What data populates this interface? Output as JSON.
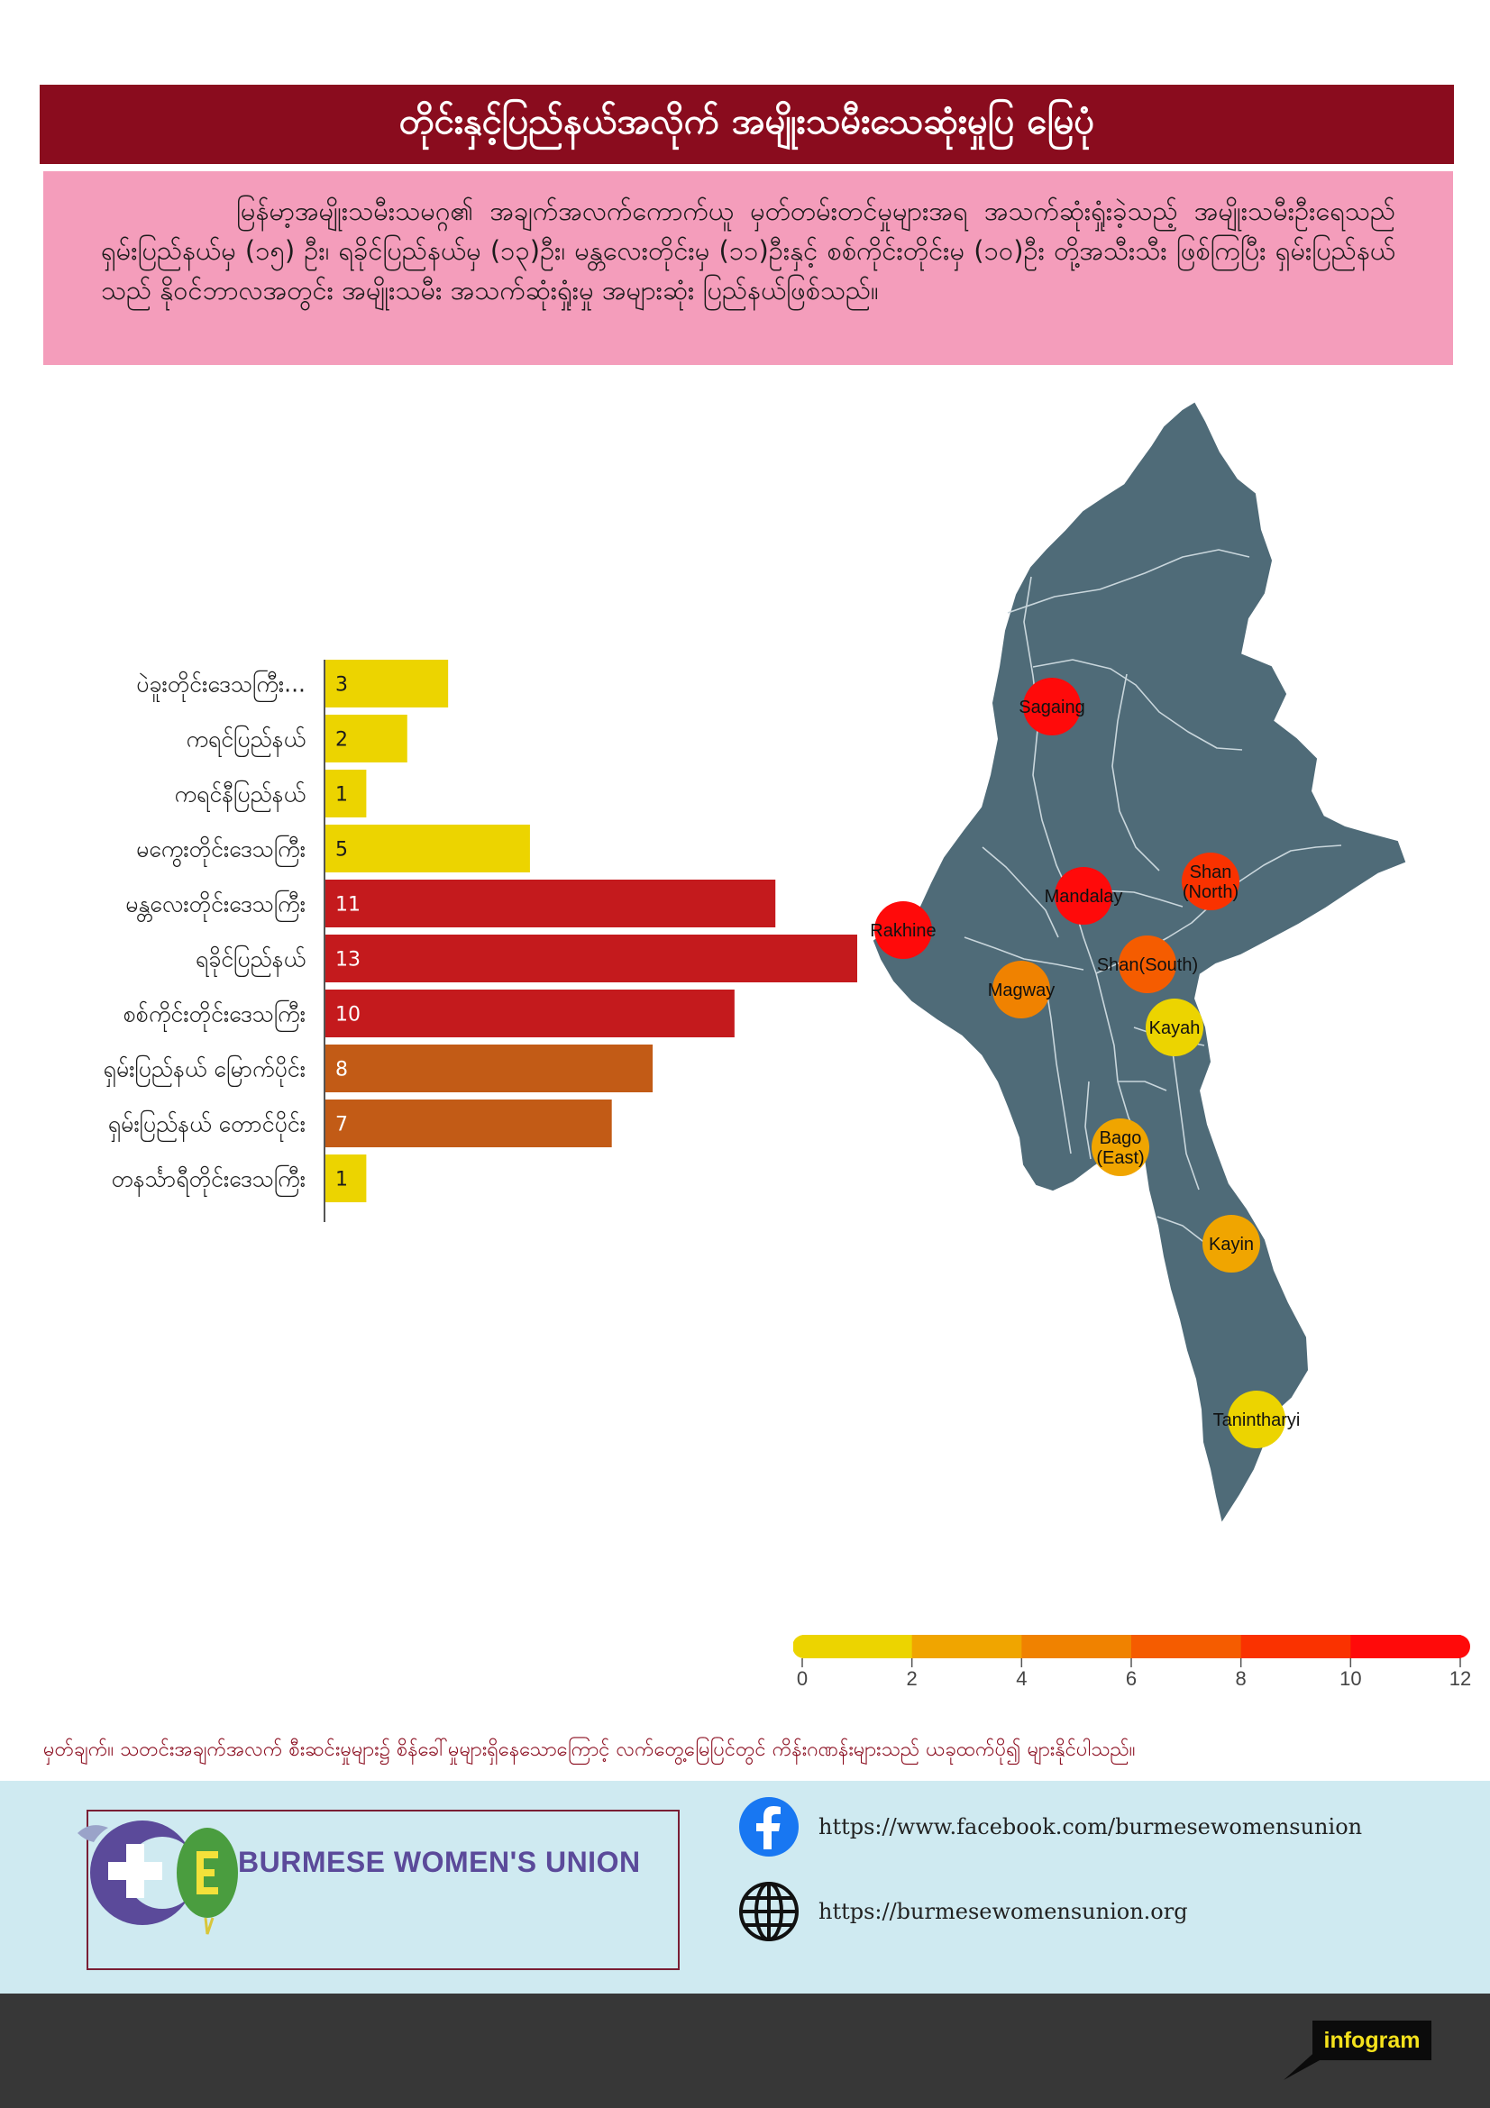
{
  "title": "တိုင်းနှင့်ပြည်နယ်အလိုက် အမျိုးသမီးသေဆုံးမှုပြ မြေပုံ",
  "summary": "မြန်မာ့အမျိုးသမီးသမဂ္ဂ၏ အချက်အလက်ကောက်ယူ မှတ်တမ်းတင်မှုများအရ အသက်ဆုံးရှုံးခဲ့သည့် အမျိုးသမီးဦးရေသည် ရှမ်းပြည်နယ်မှ (၁၅) ဦး၊ ရခိုင်ပြည်နယ်မှ (၁၃)ဦး၊ မန္တလေးတိုင်းမှ (၁၁)ဦးနှင့် စစ်ကိုင်းတိုင်းမှ (၁၀)ဦး တို့အသီးသီး ဖြစ်ကြပြီး ရှမ်းပြည်နယ်သည် နိုဝင်ဘာလအတွင်း အမျိုးသမီး အသက်ဆုံးရှုံးမှု အများဆုံး ပြည်နယ်ဖြစ်သည်။",
  "chart_data": {
    "type": "bar",
    "orientation": "horizontal",
    "categories": [
      "ပဲခူးတိုင်းဒေသကြီး...",
      "ကရင်ပြည်နယ်",
      "ကရင်နီပြည်နယ်",
      "မကွေးတိုင်းဒေသကြီး",
      "မန္တလေးတိုင်းဒေသကြီး",
      "ရခိုင်ပြည်နယ်",
      "စစ်ကိုင်းတိုင်းဒေသကြီး",
      "ရှမ်းပြည်နယ် မြောက်ပိုင်း",
      "ရှမ်းပြည်နယ် တောင်ပိုင်း",
      "တနင်္သာရီတိုင်းဒေသကြီး"
    ],
    "values": [
      3,
      2,
      1,
      5,
      11,
      13,
      10,
      8,
      7,
      1
    ],
    "xlim": [
      0,
      13
    ],
    "color_rule": {
      "low": "#ecd400",
      "mid": "#c25b16",
      "high": "#c41a1d"
    }
  },
  "map": {
    "land_color": "#4f6b78",
    "border_color": "#c9d6dc",
    "markers": [
      {
        "label": "Sagaing",
        "value": 10
      },
      {
        "label": "Rakhine",
        "value": 13
      },
      {
        "label": "Mandalay",
        "value": 11
      },
      {
        "label": "Shan (North)",
        "value": 8
      },
      {
        "label": "Shan(South)",
        "value": 7
      },
      {
        "label": "Magway",
        "value": 5
      },
      {
        "label": "Kayah",
        "value": 1
      },
      {
        "label": "Bago (East)",
        "value": 3
      },
      {
        "label": "Kayin",
        "value": 2
      },
      {
        "label": "Tanintharyi",
        "value": 1
      }
    ]
  },
  "legend": {
    "ticks": [
      "0",
      "2",
      "4",
      "6",
      "8",
      "10",
      "12"
    ],
    "colors": [
      "#ecd400",
      "#f0a500",
      "#f08200",
      "#f55c00",
      "#fa3200",
      "#ff0a0a"
    ]
  },
  "note": "မှတ်ချက်။ သတင်းအချက်အလက် စီးဆင်းမှုများ၌ စိန်ခေါ်မှုများရှိနေသောကြောင့် လက်တွေ့မြေပြင်တွင် ကိန်းဂဏန်းများသည် ယခုထက်ပို၍ များနိုင်ပါသည်။",
  "footer": {
    "org_name": "BURMESE WOMEN'S UNION",
    "facebook_url": "https://www.facebook.com/burmesewomensunion",
    "website_url": "https://burmesewomensunion.org",
    "facebook_icon": "facebook-icon",
    "globe_icon": "globe-icon",
    "brand_color": "#5b4a9a"
  },
  "badge": "infogram"
}
